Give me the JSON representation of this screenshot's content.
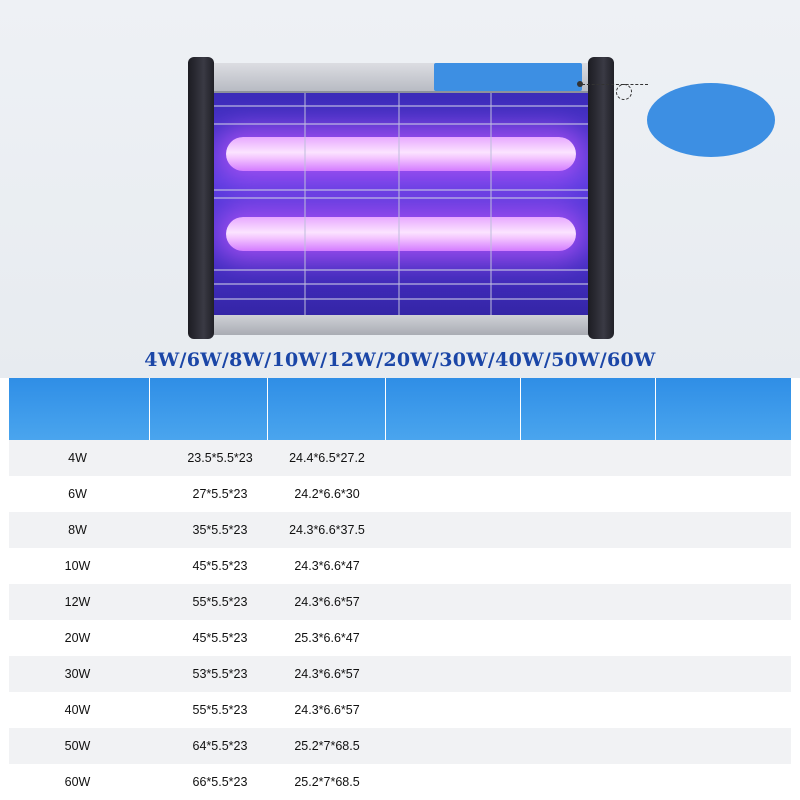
{
  "product": {
    "wattage_title": "4W/6W/8W/10W/12W/20W/30W/40W/50W/60W",
    "colors": {
      "accent_blue": "#3d8fe3",
      "title_blue": "#1b46a7",
      "uv_purple": "#5a3de0",
      "header_blue": "#2f8ee6"
    }
  },
  "spec_table": {
    "headers": [
      "",
      "",
      "",
      "",
      "",
      ""
    ],
    "rows": [
      {
        "power": "4W",
        "size_a": "23.5*5.5*23",
        "size_b": "24.4*6.5*27.2"
      },
      {
        "power": "6W",
        "size_a": "27*5.5*23",
        "size_b": "24.2*6.6*30"
      },
      {
        "power": "8W",
        "size_a": "35*5.5*23",
        "size_b": "24.3*6.6*37.5"
      },
      {
        "power": "10W",
        "size_a": "45*5.5*23",
        "size_b": "24.3*6.6*47"
      },
      {
        "power": "12W",
        "size_a": "55*5.5*23",
        "size_b": "24.3*6.6*57"
      },
      {
        "power": "20W",
        "size_a": "45*5.5*23",
        "size_b": "25.3*6.6*47"
      },
      {
        "power": "30W",
        "size_a": "53*5.5*23",
        "size_b": "24.3*6.6*57"
      },
      {
        "power": "40W",
        "size_a": "55*5.5*23",
        "size_b": "24.3*6.6*57"
      },
      {
        "power": "50W",
        "size_a": "64*5.5*23",
        "size_b": "25.2*7*68.5"
      },
      {
        "power": "60W",
        "size_a": "66*5.5*23",
        "size_b": "25.2*7*68.5"
      }
    ]
  }
}
